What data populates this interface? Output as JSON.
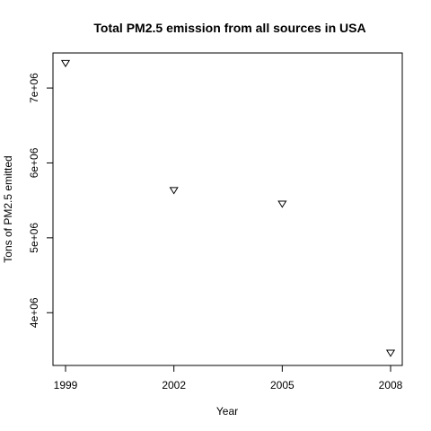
{
  "chart_data": {
    "type": "scatter",
    "title": "Total PM2.5 emission from all sources in USA",
    "xlabel": "Year",
    "ylabel": "Tons of PM2.5 emitted",
    "marker": "open-down-triangle",
    "colors": {
      "marker": "#000000",
      "axis": "#000000",
      "background": "#ffffff"
    },
    "grid": false,
    "legend": "none",
    "x": [
      1999,
      2002,
      2005,
      2008
    ],
    "y": [
      7332967,
      5635780,
      5454703,
      3464206
    ],
    "xlim": [
      1999,
      2008
    ],
    "ylim": [
      3400000,
      7400000
    ],
    "x_ticks": [
      {
        "value": 1999,
        "label": "1999"
      },
      {
        "value": 2002,
        "label": "2002"
      },
      {
        "value": 2005,
        "label": "2005"
      },
      {
        "value": 2008,
        "label": "2008"
      }
    ],
    "y_ticks": [
      {
        "value": 4000000,
        "label": "4e+06"
      },
      {
        "value": 5000000,
        "label": "5e+06"
      },
      {
        "value": 6000000,
        "label": "6e+06"
      },
      {
        "value": 7000000,
        "label": "7e+06"
      }
    ]
  }
}
